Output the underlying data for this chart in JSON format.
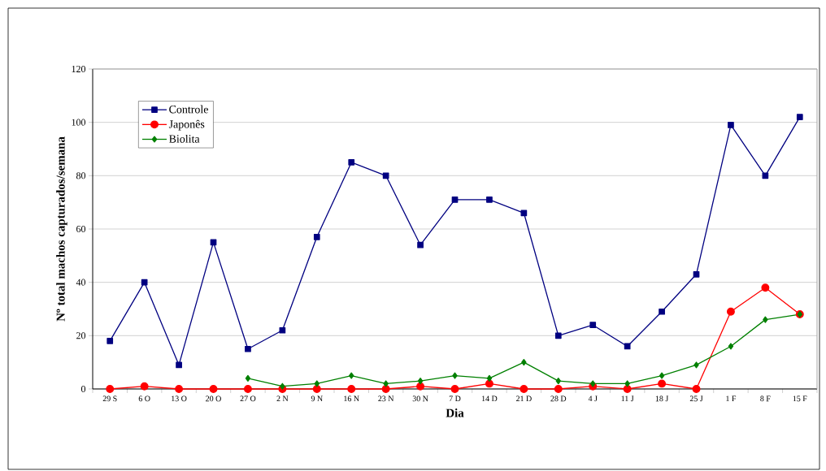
{
  "chart_data": {
    "type": "line",
    "xlabel": "Dia",
    "ylabel": "Nº total machos capturados/semana",
    "categories": [
      "29 S",
      "6 O",
      "13 O",
      "20 O",
      "27 O",
      "2 N",
      "9 N",
      "16 N",
      "23 N",
      "30 N",
      "7 D",
      "14 D",
      "21 D",
      "28 D",
      "4 J",
      "11 J",
      "18 J",
      "25 J",
      "1 F",
      "8 F",
      "15 F"
    ],
    "series": [
      {
        "name": "Controle",
        "color": "#000080",
        "marker": "square",
        "values": [
          18,
          40,
          9,
          55,
          15,
          22,
          57,
          85,
          80,
          54,
          71,
          71,
          66,
          20,
          24,
          16,
          29,
          43,
          99,
          80,
          102
        ]
      },
      {
        "name": "Japonês",
        "color": "#ff0000",
        "marker": "circle",
        "values": [
          0,
          1,
          0,
          0,
          0,
          0,
          0,
          0,
          0,
          1,
          0,
          2,
          0,
          0,
          1,
          0,
          2,
          0,
          29,
          38,
          28
        ]
      },
      {
        "name": "Biolita",
        "color": "#008000",
        "marker": "diamond",
        "values": [
          null,
          null,
          null,
          null,
          4,
          1,
          2,
          5,
          2,
          3,
          5,
          4,
          10,
          3,
          2,
          2,
          5,
          9,
          16,
          26,
          28
        ]
      }
    ],
    "ylim": [
      0,
      120
    ],
    "yticks": [
      0,
      20,
      40,
      60,
      80,
      100,
      120
    ],
    "grid": "y",
    "legend": "top left",
    "line_style": "solid"
  }
}
